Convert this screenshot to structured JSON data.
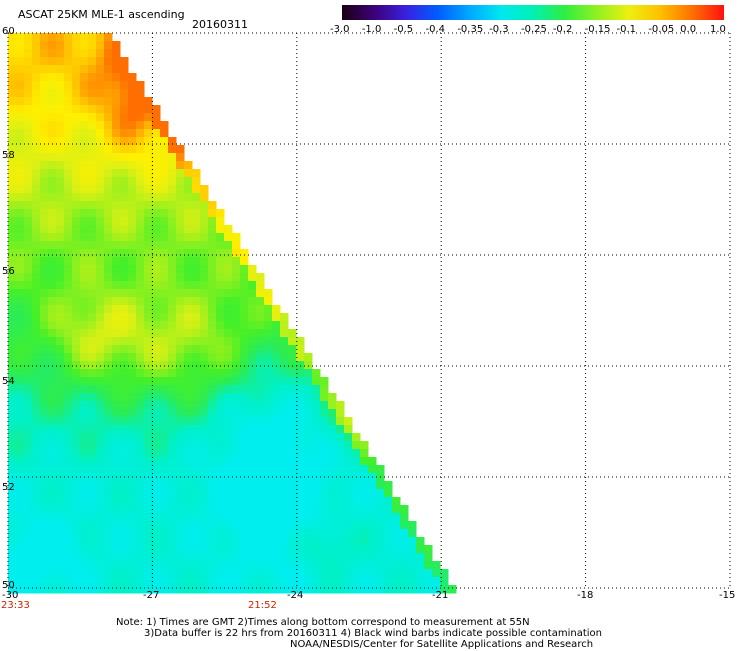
{
  "header": {
    "title": "ASCAT 25KM MLE-1 ascending",
    "date": "20160311"
  },
  "colorbar": {
    "labels": [
      "-3.0",
      "-1.0",
      "-0.5",
      "-0.4",
      "-0.35",
      "-0.3",
      "-0.25",
      "-0.2",
      "-0.15",
      "-0.1",
      "-0.05",
      "0.0",
      "1.0"
    ],
    "colors": [
      "#1a0010",
      "#3c0078",
      "#3a20e0",
      "#005cff",
      "#00a8ff",
      "#00e8f0",
      "#00f0b4",
      "#30ee40",
      "#90f020",
      "#ecf010",
      "#ffc000",
      "#ff7000",
      "#ff1010"
    ]
  },
  "axes": {
    "lon_labels": [
      "-30",
      "-27",
      "-24",
      "-21",
      "-18",
      "-15"
    ],
    "lon_values": [
      -30,
      -27,
      -24,
      -21,
      -18,
      -15
    ],
    "lat_labels": [
      "60",
      "58",
      "56",
      "54",
      "52",
      "50"
    ],
    "lat_values": [
      60,
      58,
      56,
      54,
      52,
      50
    ]
  },
  "times": {
    "left": "23:33",
    "mid": "21:52"
  },
  "notes": {
    "line1": "Note: 1) Times are GMT 2)Times along bottom correspond to measurement at 55N",
    "line2": "3)Data buffer is 22 hrs from 20160311 4) Black wind barbs indicate possible contamination",
    "line3": "NOAA/NESDIS/Center for Satellite Applications and Research"
  }
}
